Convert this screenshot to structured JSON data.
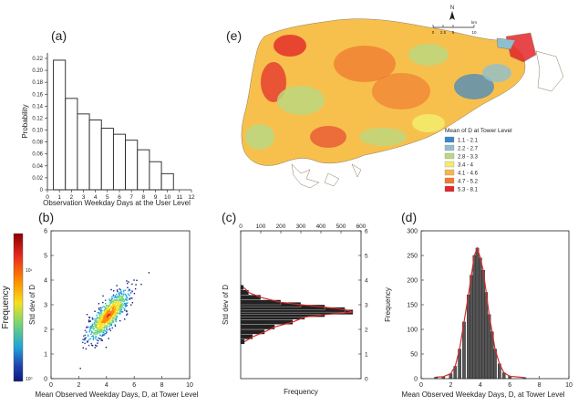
{
  "chart_data": [
    {
      "id": "a",
      "type": "bar",
      "panel_label": "(a)",
      "xlabel": "Observation Weekday Days at the User Level",
      "ylabel": "Probability",
      "categories": [
        1,
        2,
        3,
        4,
        5,
        6,
        7,
        8,
        9,
        10
      ],
      "values": [
        0.217,
        0.153,
        0.127,
        0.117,
        0.103,
        0.093,
        0.083,
        0.067,
        0.047,
        0.027
      ],
      "xlim": [
        0,
        12
      ],
      "ylim": [
        0,
        0.22
      ],
      "xticks": [
        0,
        1,
        2,
        3,
        4,
        5,
        6,
        7,
        8,
        9,
        10,
        11,
        12
      ],
      "yticks": [
        0,
        0.02,
        0.04,
        0.06,
        0.08,
        0.1,
        0.12,
        0.14,
        0.16,
        0.18,
        0.2,
        0.22
      ],
      "ytick_labels": [
        "0",
        "0.02",
        "0.04",
        "0.06",
        "0.08",
        "0.10",
        "0.12",
        "0.14",
        "0.16",
        "0.18",
        "0.20",
        "0.22"
      ]
    },
    {
      "id": "b",
      "type": "heatmap",
      "panel_label": "(b)",
      "xlabel": "Mean Observed Weekday Days, D, at Tower Level",
      "ylabel": "Std dev of D",
      "xlim": [
        0,
        10
      ],
      "ylim": [
        0,
        6
      ],
      "xticks": [
        0,
        2,
        4,
        6,
        8,
        10
      ],
      "yticks": [
        0,
        1,
        2,
        3,
        4,
        5,
        6
      ],
      "colorbar_label": "Frequency",
      "colorbar_ticks": [
        "10¹",
        "10⁰"
      ],
      "colorbar_colors": [
        "#8b0000",
        "#e8281e",
        "#ff8c00",
        "#f5e11e",
        "#6fd27a",
        "#1fa3d8",
        "#1f3fae",
        "#0a1a7a"
      ]
    },
    {
      "id": "c",
      "type": "bar",
      "orientation": "horizontal",
      "panel_label": "(c)",
      "xlabel": "Frequency",
      "ylabel": "Std dev of D",
      "xlim": [
        0,
        600
      ],
      "ylim": [
        0,
        6
      ],
      "xticks": [
        0,
        100,
        200,
        300,
        400,
        500,
        600
      ],
      "yticks": [
        0,
        1,
        2,
        3,
        4,
        5,
        6
      ],
      "bin_centers": [
        1.5,
        1.7,
        1.9,
        2.1,
        2.3,
        2.5,
        2.6,
        2.7,
        2.8,
        2.9,
        3.0,
        3.1,
        3.3,
        3.5,
        3.7
      ],
      "values": [
        20,
        60,
        120,
        170,
        260,
        320,
        420,
        560,
        520,
        420,
        300,
        200,
        100,
        40,
        15
      ]
    },
    {
      "id": "d",
      "type": "bar",
      "panel_label": "(d)",
      "xlabel": "Mean Observed Weekday Days, D, at Tower Level",
      "ylabel": "Frequency",
      "xlim": [
        0,
        10
      ],
      "ylim": [
        0,
        300
      ],
      "xticks": [
        0,
        2,
        4,
        6,
        8,
        10
      ],
      "yticks": [
        0,
        50,
        100,
        150,
        200,
        250,
        300
      ],
      "bin_centers": [
        1.0,
        1.5,
        2.0,
        2.3,
        2.6,
        2.9,
        3.2,
        3.4,
        3.6,
        3.8,
        4.0,
        4.2,
        4.4,
        4.6,
        4.8,
        5.0,
        5.3,
        5.6,
        6.0,
        7.0
      ],
      "values": [
        3,
        4,
        10,
        25,
        60,
        115,
        170,
        210,
        250,
        265,
        245,
        220,
        175,
        130,
        95,
        60,
        30,
        12,
        5,
        2
      ]
    },
    {
      "id": "e",
      "type": "map",
      "panel_label": "(e)",
      "north_label": "N",
      "scale_ticks": [
        "0",
        "2.5",
        "5",
        "10"
      ],
      "scale_unit": "km",
      "legend_title": "Mean of D at Tower Level",
      "legend": [
        {
          "label": "1.1 - 2.1",
          "color": "#3a86c8"
        },
        {
          "label": "2.2 - 2.7",
          "color": "#8fbfcf"
        },
        {
          "label": "2.8 - 3.3",
          "color": "#bcd77f"
        },
        {
          "label": "3.4 - 4",
          "color": "#f2ec6f"
        },
        {
          "label": "4.1 - 4.6",
          "color": "#f8b64a"
        },
        {
          "label": "4.7 - 5.2",
          "color": "#f07a30"
        },
        {
          "label": "5.3 - 8.1",
          "color": "#e3262b"
        }
      ]
    }
  ]
}
